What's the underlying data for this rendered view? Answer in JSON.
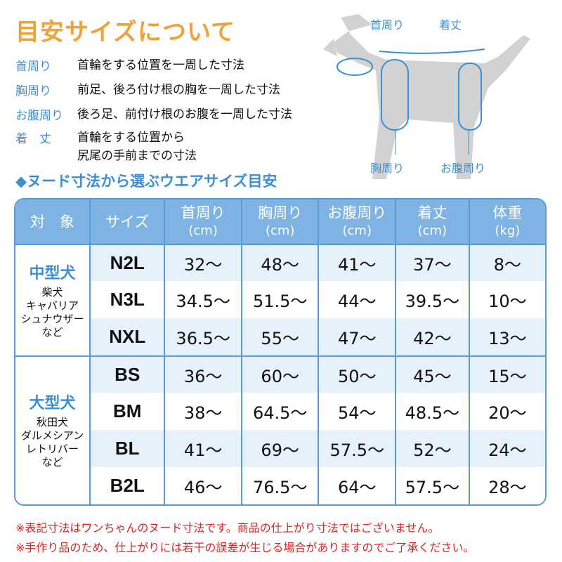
{
  "title": "目安サイズについて",
  "definitions": [
    {
      "term": "首周り",
      "desc": "首輪をする位置を一周した寸法"
    },
    {
      "term": "胸周り",
      "desc": "前足、後ろ付け根の胸を一周した寸法"
    },
    {
      "term": "お腹周り",
      "desc": "後ろ足、前付け根のお腹を一周した寸法"
    },
    {
      "term": "着　丈",
      "desc": "首輪をする位置から",
      "desc2": "尻尾の手前までの寸法"
    }
  ],
  "diagram": {
    "neck": "首周り",
    "length": "着丈",
    "chest": "胸周り",
    "belly": "お腹周り"
  },
  "subtitle": "◆ヌード寸法から選ぶウエアサイズ目安",
  "table": {
    "headers": [
      {
        "l": "対　象"
      },
      {
        "l": "サイズ"
      },
      {
        "l": "首周り",
        "u": "(cm)"
      },
      {
        "l": "胸周り",
        "u": "(cm)"
      },
      {
        "l": "お腹周り",
        "u": "(cm)"
      },
      {
        "l": "着丈",
        "u": "(cm)"
      },
      {
        "l": "体重",
        "u": "(kg)"
      }
    ],
    "groups": [
      {
        "name": "中型犬",
        "breeds": [
          "柴犬",
          "キャバリア",
          "シュナウザー",
          "など"
        ],
        "rows": [
          [
            "N2L",
            "32〜",
            "48〜",
            "41〜",
            "37〜",
            "8〜"
          ],
          [
            "N3L",
            "34.5〜",
            "51.5〜",
            "44〜",
            "39.5〜",
            "10〜"
          ],
          [
            "NXL",
            "36.5〜",
            "55〜",
            "47〜",
            "42〜",
            "13〜"
          ]
        ]
      },
      {
        "name": "大型犬",
        "breeds": [
          "秋田犬",
          "ダルメシアン",
          "レトリバー",
          "など"
        ],
        "rows": [
          [
            "BS",
            "36〜",
            "60〜",
            "50〜",
            "45〜",
            "15〜"
          ],
          [
            "BM",
            "38〜",
            "64.5〜",
            "54〜",
            "48.5〜",
            "20〜"
          ],
          [
            "BL",
            "41〜",
            "69〜",
            "57.5〜",
            "52〜",
            "24〜"
          ],
          [
            "B2L",
            "46〜",
            "76.5〜",
            "64〜",
            "57.5〜",
            "28〜"
          ]
        ]
      }
    ]
  },
  "notes": [
    "※表記寸法はワンちゃんのヌード寸法です。商品の仕上がり寸法ではございません。",
    "※手作り品のため、仕上がりには若干の誤差が生じる場合がありますのでご了承ください。"
  ],
  "colors": {
    "accent": "#3a8fd6",
    "title": "#f0a13a",
    "header": "#7eb3e3",
    "note": "#dd2222"
  }
}
